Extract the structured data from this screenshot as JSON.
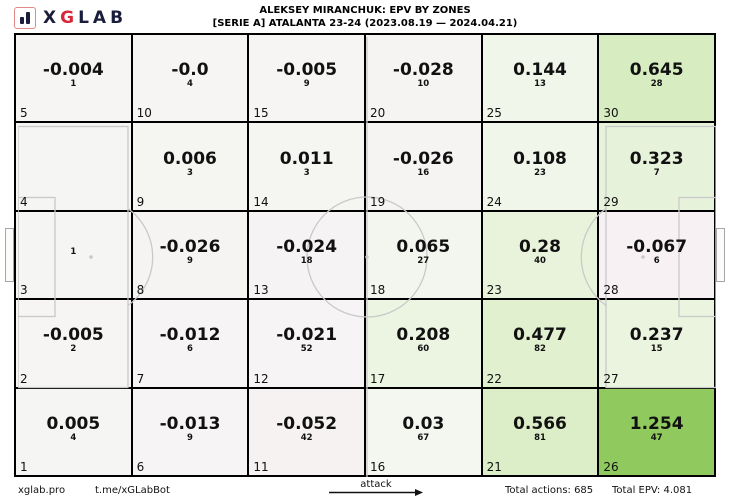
{
  "header": {
    "logo": {
      "x": "X",
      "g": "G",
      "lab": "LAB",
      "icon": "bar-chart"
    },
    "brand_navy": "#1a1e3c",
    "brand_red": "#d62839"
  },
  "chart_data": {
    "type": "heatmap",
    "title": "ALEKSEY MIRANCHUK: EPV BY ZONES",
    "subtitle": "[SERIE A] ATALANTA 23-24 (2023.08.19 — 2024.04.21)",
    "grid": {
      "rows": 5,
      "cols": 6
    },
    "attack_direction": "right",
    "total_actions": 685,
    "total_epv": 4.081,
    "positive_color_max": "#90ca5e",
    "negative_color_hint": "#f7f1f3",
    "cells": [
      {
        "zone": 5,
        "epv": "-0.004",
        "count": "1",
        "bg": "#f6f5f4"
      },
      {
        "zone": 10,
        "epv": "-0.0",
        "count": "4",
        "bg": "#f6f5f4"
      },
      {
        "zone": 15,
        "epv": "-0.005",
        "count": "9",
        "bg": "#f6f5f4"
      },
      {
        "zone": 20,
        "epv": "-0.028",
        "count": "10",
        "bg": "#f6f3f3"
      },
      {
        "zone": 25,
        "epv": "0.144",
        "count": "13",
        "bg": "#f0f6e9"
      },
      {
        "zone": 30,
        "epv": "0.645",
        "count": "28",
        "bg": "#d7ecc1"
      },
      {
        "zone": 4,
        "epv": "",
        "count": "",
        "bg": "#f5f5f3"
      },
      {
        "zone": 9,
        "epv": "0.006",
        "count": "3",
        "bg": "#f5f6f2"
      },
      {
        "zone": 14,
        "epv": "0.011",
        "count": "3",
        "bg": "#f5f6f2"
      },
      {
        "zone": 19,
        "epv": "-0.026",
        "count": "16",
        "bg": "#f6f3f3"
      },
      {
        "zone": 24,
        "epv": "0.108",
        "count": "23",
        "bg": "#f1f6ea"
      },
      {
        "zone": 29,
        "epv": "0.323",
        "count": "7",
        "bg": "#e7f2da"
      },
      {
        "zone": 3,
        "epv": "",
        "count": "1",
        "bg": "#f5f5f3"
      },
      {
        "zone": 8,
        "epv": "-0.026",
        "count": "9",
        "bg": "#f6f3f3"
      },
      {
        "zone": 13,
        "epv": "-0.024",
        "count": "18",
        "bg": "#f6f3f4"
      },
      {
        "zone": 18,
        "epv": "0.065",
        "count": "27",
        "bg": "#f3f6ee"
      },
      {
        "zone": 23,
        "epv": "0.28",
        "count": "40",
        "bg": "#e9f3dc"
      },
      {
        "zone": 28,
        "epv": "-0.067",
        "count": "6",
        "bg": "#f7f1f3"
      },
      {
        "zone": 2,
        "epv": "-0.005",
        "count": "2",
        "bg": "#f6f5f4"
      },
      {
        "zone": 7,
        "epv": "-0.012",
        "count": "6",
        "bg": "#f6f4f4"
      },
      {
        "zone": 12,
        "epv": "-0.021",
        "count": "52",
        "bg": "#f6f4f4"
      },
      {
        "zone": 17,
        "epv": "0.208",
        "count": "60",
        "bg": "#ecf5e1"
      },
      {
        "zone": 22,
        "epv": "0.477",
        "count": "82",
        "bg": "#e1f0cf"
      },
      {
        "zone": 27,
        "epv": "0.237",
        "count": "15",
        "bg": "#ebf4df"
      },
      {
        "zone": 1,
        "epv": "0.005",
        "count": "4",
        "bg": "#f5f6f3"
      },
      {
        "zone": 6,
        "epv": "-0.013",
        "count": "9",
        "bg": "#f6f4f4"
      },
      {
        "zone": 11,
        "epv": "-0.052",
        "count": "42",
        "bg": "#f6f2f2"
      },
      {
        "zone": 16,
        "epv": "0.03",
        "count": "67",
        "bg": "#f4f6f0"
      },
      {
        "zone": 21,
        "epv": "0.566",
        "count": "81",
        "bg": "#dceec8"
      },
      {
        "zone": 26,
        "epv": "1.254",
        "count": "47",
        "bg": "#90ca5e"
      }
    ]
  },
  "footer": {
    "site": "xglab.pro",
    "bot": "t.me/xGLabBot",
    "attack_label": "attack",
    "total_actions_text": "Total actions: 685",
    "total_epv_text": "Total EPV: 4.081"
  }
}
